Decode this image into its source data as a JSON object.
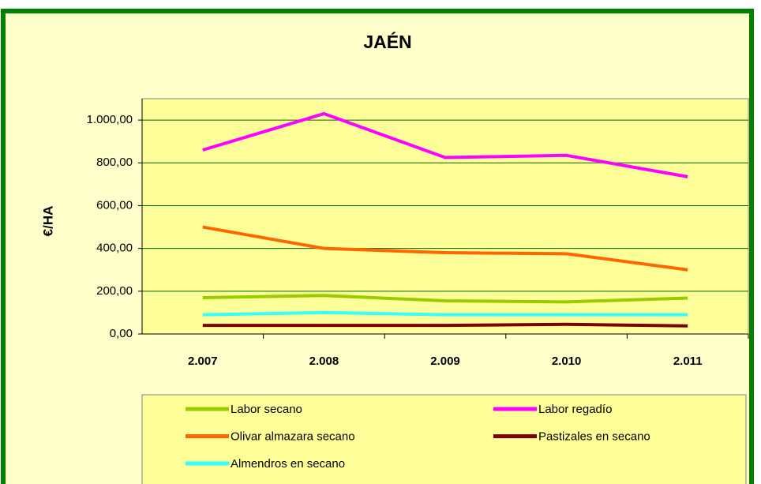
{
  "chart_data": {
    "type": "line",
    "title": "JAÉN",
    "y_label": "€/HA",
    "categories": [
      "2.007",
      "2.008",
      "2.009",
      "2.010",
      "2.011"
    ],
    "series": [
      {
        "name": "Labor secano",
        "color": "#99cc00",
        "values": [
          170,
          180,
          155,
          150,
          168
        ]
      },
      {
        "name": "Labor regadío",
        "color": "#ff00ff",
        "values": [
          860,
          1030,
          825,
          835,
          735
        ]
      },
      {
        "name": "Olivar almazara secano",
        "color": "#ff6600",
        "values": [
          500,
          400,
          380,
          375,
          300
        ]
      },
      {
        "name": "Pastizales en secano",
        "color": "#800000",
        "values": [
          40,
          40,
          40,
          45,
          38
        ]
      },
      {
        "name": "Almendros en secano",
        "color": "#33ffff",
        "values": [
          90,
          100,
          90,
          90,
          90
        ]
      }
    ],
    "ylim": [
      0,
      1100
    ],
    "yticks": [
      {
        "value": 0,
        "label": "0,00"
      },
      {
        "value": 200,
        "label": "200,00"
      },
      {
        "value": 400,
        "label": "400,00"
      },
      {
        "value": 600,
        "label": "600,00"
      },
      {
        "value": 800,
        "label": "800,00"
      },
      {
        "value": 1000,
        "label": "1.000,00"
      }
    ],
    "grid": true
  }
}
